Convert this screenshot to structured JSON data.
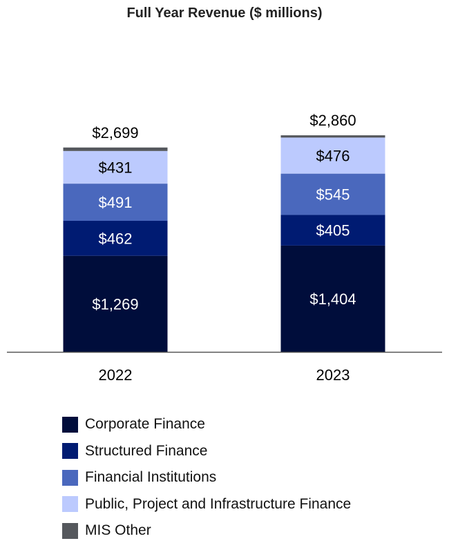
{
  "chart_data": {
    "type": "bar",
    "stacked": true,
    "title": "Full Year Revenue ($ millions)",
    "categories": [
      "2022",
      "2023"
    ],
    "series": [
      {
        "name": "Corporate Finance",
        "values": [
          1269,
          1404
        ],
        "labels": [
          "$1,269",
          "$1,404"
        ],
        "color": "#000d3b",
        "label_color": "#ffffff"
      },
      {
        "name": "Structured Finance",
        "values": [
          462,
          405
        ],
        "labels": [
          "$462",
          "$405"
        ],
        "color": "#001b72",
        "label_color": "#ffffff"
      },
      {
        "name": "Financial Institutions",
        "values": [
          491,
          545
        ],
        "labels": [
          "$491",
          "$545"
        ],
        "color": "#4a68bd",
        "label_color": "#ffffff"
      },
      {
        "name": "Public, Project and Infrastructure Finance",
        "values": [
          431,
          476
        ],
        "labels": [
          "$431",
          "$476"
        ],
        "color": "#bccafe",
        "label_color": "#000000"
      },
      {
        "name": "MIS Other",
        "values": [
          46,
          30
        ],
        "labels": [
          "",
          ""
        ],
        "color": "#55585d",
        "label_color": "#000000"
      }
    ],
    "totals": [
      2699,
      2860
    ],
    "total_labels": [
      "$2,699",
      "$2,860"
    ],
    "ylim": [
      0,
      4100
    ],
    "grid": false,
    "legend_position": "bottom"
  }
}
